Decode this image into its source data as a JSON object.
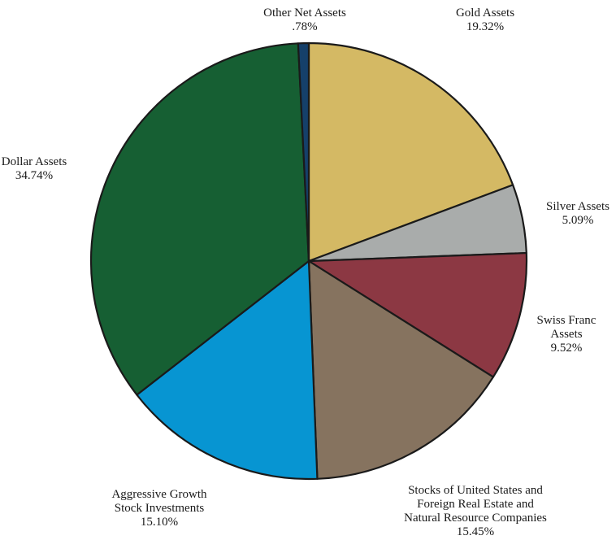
{
  "chart_data": {
    "type": "pie",
    "slices": [
      {
        "label_lines": [
          "Gold Assets"
        ],
        "value_label": "19.32%",
        "value": 19.32,
        "color": "#d4b964"
      },
      {
        "label_lines": [
          "Silver Assets"
        ],
        "value_label": "5.09%",
        "value": 5.09,
        "color": "#a9acab"
      },
      {
        "label_lines": [
          "Swiss Franc",
          "Assets"
        ],
        "value_label": "9.52%",
        "value": 9.52,
        "color": "#8c3843"
      },
      {
        "label_lines": [
          "Stocks of United States and",
          "Foreign Real Estate and",
          "Natural Resource Companies"
        ],
        "value_label": "15.45%",
        "value": 15.45,
        "color": "#86735f"
      },
      {
        "label_lines": [
          "Aggressive Growth",
          "Stock Investments"
        ],
        "value_label": "15.10%",
        "value": 15.1,
        "color": "#0795d2"
      },
      {
        "label_lines": [
          "Dollar Assets"
        ],
        "value_label": "34.74%",
        "value": 34.74,
        "color": "#165f33"
      },
      {
        "label_lines": [
          "Other Net Assets"
        ],
        "value_label": ".78%",
        "value": 0.78,
        "color": "#15406a"
      }
    ]
  }
}
